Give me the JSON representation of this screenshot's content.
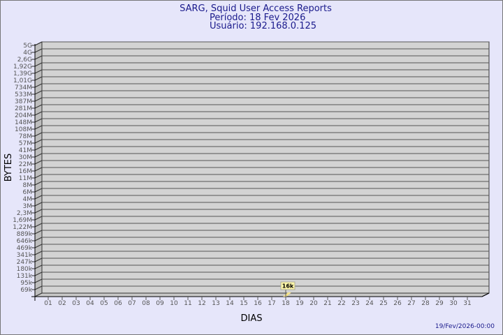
{
  "chart_data": {
    "type": "bar",
    "title": "SARG, Squid User Access Reports",
    "subtitle": [
      "Período: 18 Fev 2026",
      "Usuário: 192.168.0.125"
    ],
    "xlabel": "DIAS",
    "ylabel": "BYTES",
    "y_scale": "log",
    "y_tick_labels": [
      "5G",
      "4G",
      "2,6G",
      "1,92G",
      "1,39G",
      "1,01G",
      "734M",
      "533M",
      "387M",
      "281M",
      "204M",
      "148M",
      "108M",
      "78M",
      "57M",
      "41M",
      "30M",
      "22M",
      "16M",
      "11M",
      "8M",
      "6M",
      "4M",
      "3M",
      "2,3M",
      "1,69M",
      "1,22M",
      "889k",
      "646k",
      "469k",
      "341k",
      "247k",
      "180k",
      "131k",
      "95k",
      "69k"
    ],
    "categories": [
      "01",
      "02",
      "03",
      "04",
      "05",
      "06",
      "07",
      "08",
      "09",
      "10",
      "11",
      "12",
      "13",
      "14",
      "15",
      "16",
      "17",
      "18",
      "19",
      "20",
      "21",
      "22",
      "23",
      "24",
      "25",
      "26",
      "27",
      "28",
      "29",
      "30",
      "31"
    ],
    "bars": [
      {
        "day": "18",
        "value": 16000,
        "label": "16k"
      }
    ],
    "grid": true,
    "colors": {
      "background": "#e6e6fa",
      "plot": "#d3d3d3",
      "title": "#1a1a8c",
      "bar": "#f5e38a",
      "label_box": "#fff6a8"
    }
  },
  "footer": {
    "timestamp": "19/Fev/2026-00:00"
  }
}
